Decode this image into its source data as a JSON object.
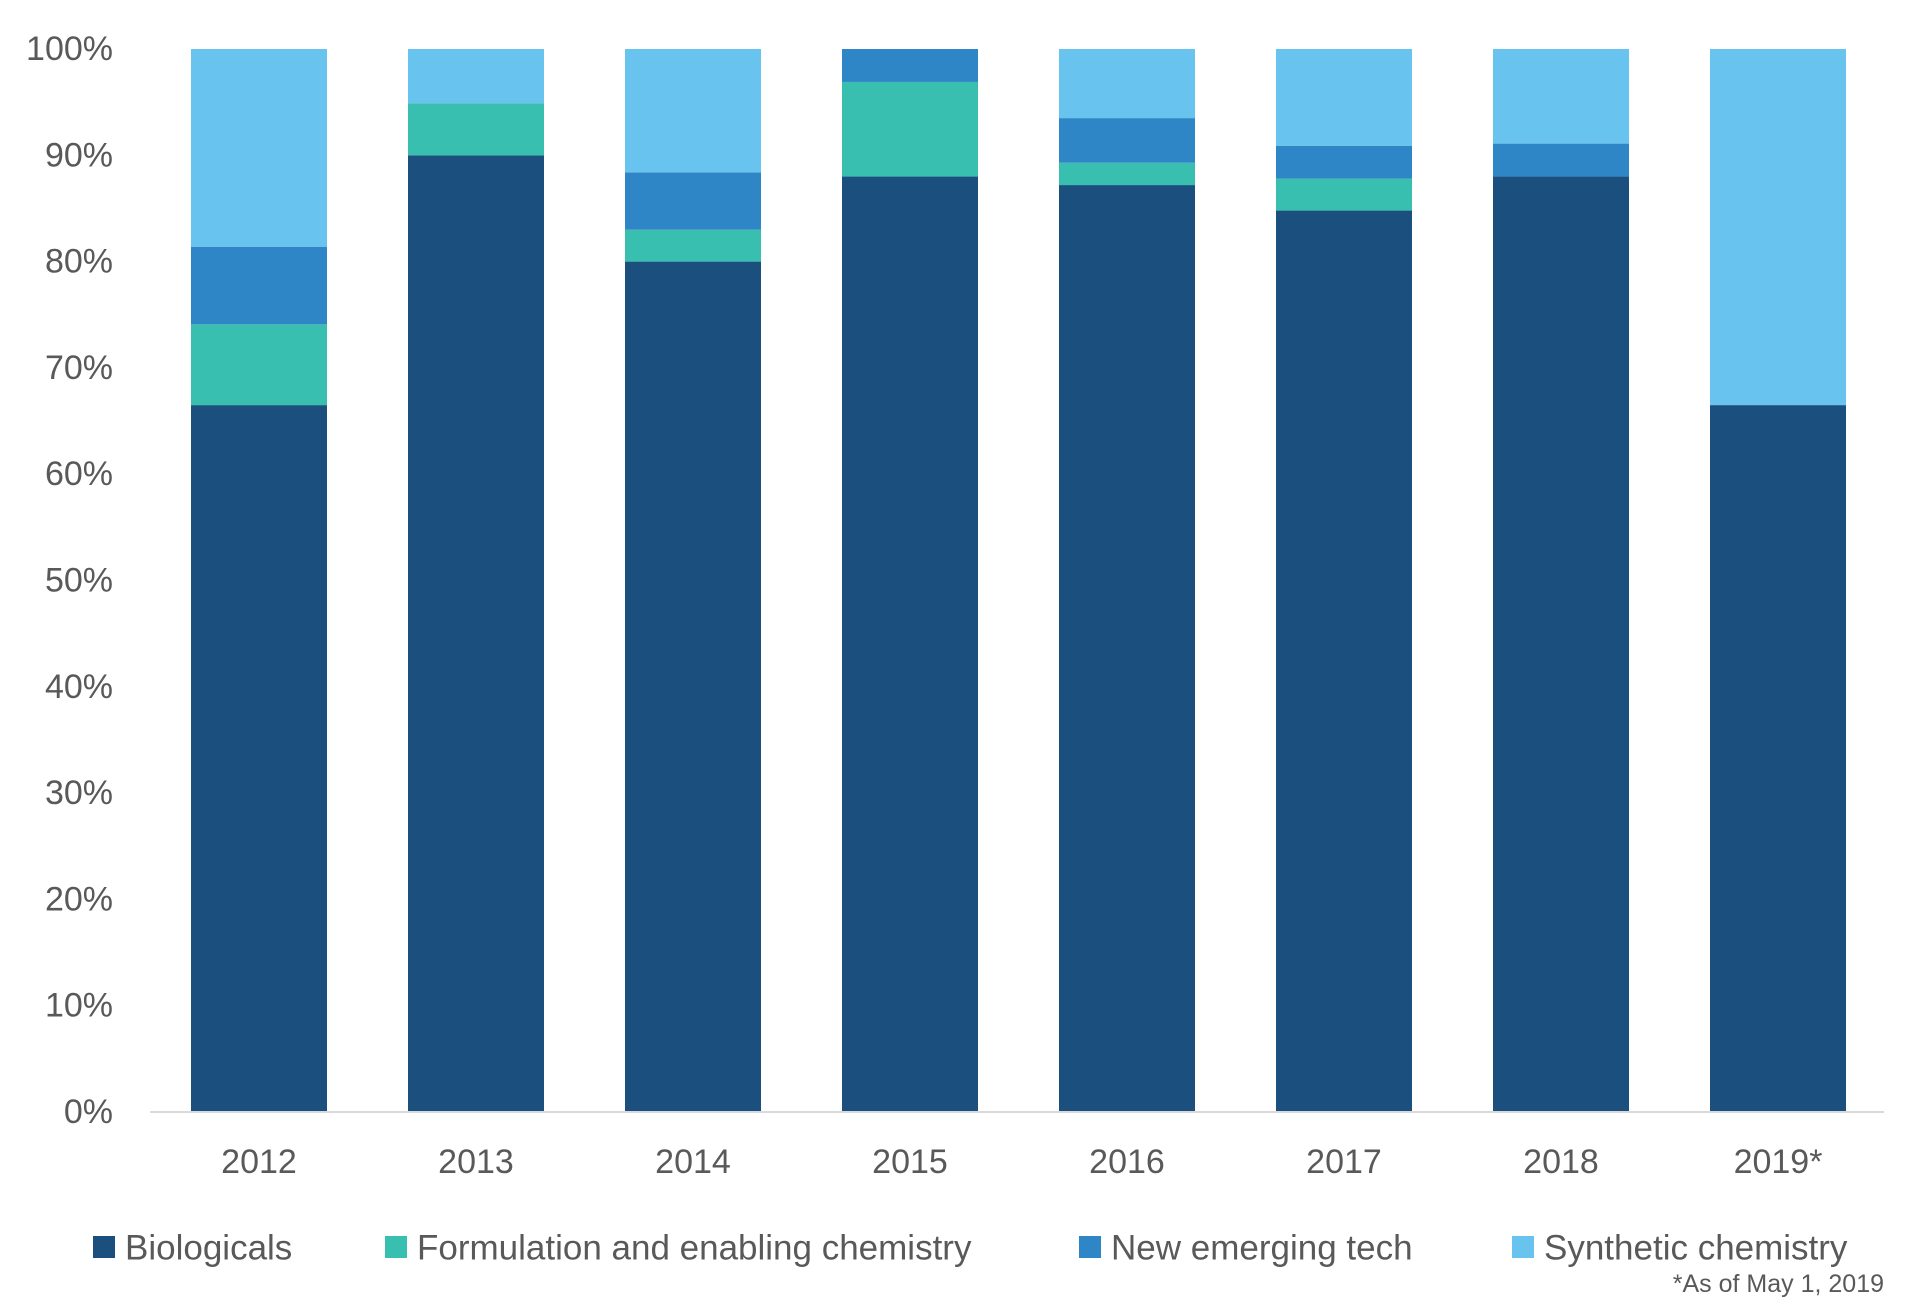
{
  "chart_data": {
    "type": "bar",
    "stacked": true,
    "categories": [
      "2012",
      "2013",
      "2014",
      "2015",
      "2016",
      "2017",
      "2018",
      "2019*"
    ],
    "series": [
      {
        "name": "Biologicals",
        "color": "#1b4f7e",
        "values": [
          66.5,
          90,
          80,
          88,
          87.2,
          84.8,
          88,
          66.5
        ]
      },
      {
        "name": "Formulation and enabling chemistry",
        "color": "#38bfb0",
        "values": [
          7.6,
          4.9,
          3,
          8.9,
          2.1,
          3,
          0,
          0
        ]
      },
      {
        "name": "New emerging tech",
        "color": "#2f86c6",
        "values": [
          7.3,
          0,
          5.4,
          3.1,
          4.2,
          3.1,
          3.1,
          0
        ]
      },
      {
        "name": "Synthetic chemistry",
        "color": "#69c3ef",
        "values": [
          18.6,
          5.1,
          11.6,
          0,
          6.5,
          9.1,
          8.9,
          33.5
        ]
      }
    ],
    "y_ticks": [
      "0%",
      "10%",
      "20%",
      "30%",
      "40%",
      "50%",
      "60%",
      "70%",
      "80%",
      "90%",
      "100%"
    ],
    "ylim": [
      0,
      100
    ],
    "grid": false,
    "legend_position": "bottom",
    "footnote": "*As of May 1, 2019"
  }
}
